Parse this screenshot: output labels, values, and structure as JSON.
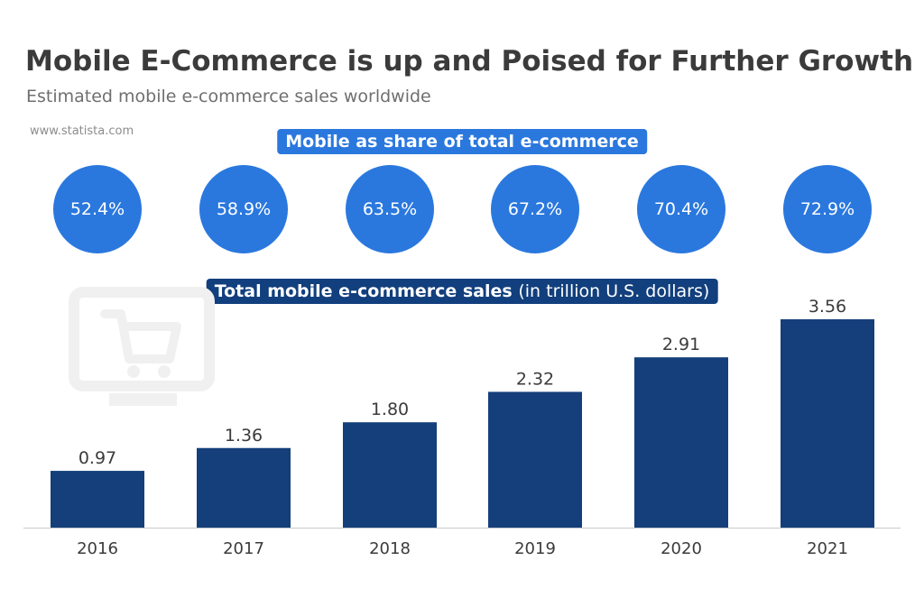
{
  "title": "Mobile E-Commerce is up and Poised for Further Growth",
  "subtitle": "Estimated mobile e-commerce sales worldwide",
  "source": "www.statista.com",
  "share_label": "Mobile as share of total e-commerce",
  "sales_label": {
    "main": "Total mobile e-commerce sales",
    "unit": "(in trillion U.S. dollars)"
  },
  "colors": {
    "share_circle": "#2a78de",
    "bar": "#143f7a",
    "sales_label_bg": "#123f7d",
    "cart_illustration": "#f0f0f0"
  },
  "decoration": {
    "icon": "shopping-cart-monitor-icon"
  },
  "chart_data": [
    {
      "type": "table",
      "title": "Mobile as share of total e-commerce",
      "categories": [
        "2016",
        "2017",
        "2018",
        "2019",
        "2020",
        "2021"
      ],
      "values": [
        "52.4%",
        "58.9%",
        "63.5%",
        "67.2%",
        "70.4%",
        "72.9%"
      ]
    },
    {
      "type": "bar",
      "title": "Total mobile e-commerce sales (in trillion U.S. dollars)",
      "categories": [
        "2016",
        "2017",
        "2018",
        "2019",
        "2020",
        "2021"
      ],
      "values": [
        0.97,
        1.36,
        1.8,
        2.32,
        2.91,
        3.56
      ],
      "value_labels": [
        "0.97",
        "1.36",
        "1.80",
        "2.32",
        "2.91",
        "3.56"
      ],
      "ylim": [
        0,
        3.56
      ],
      "grid": false,
      "y_axis_visible": false
    }
  ]
}
